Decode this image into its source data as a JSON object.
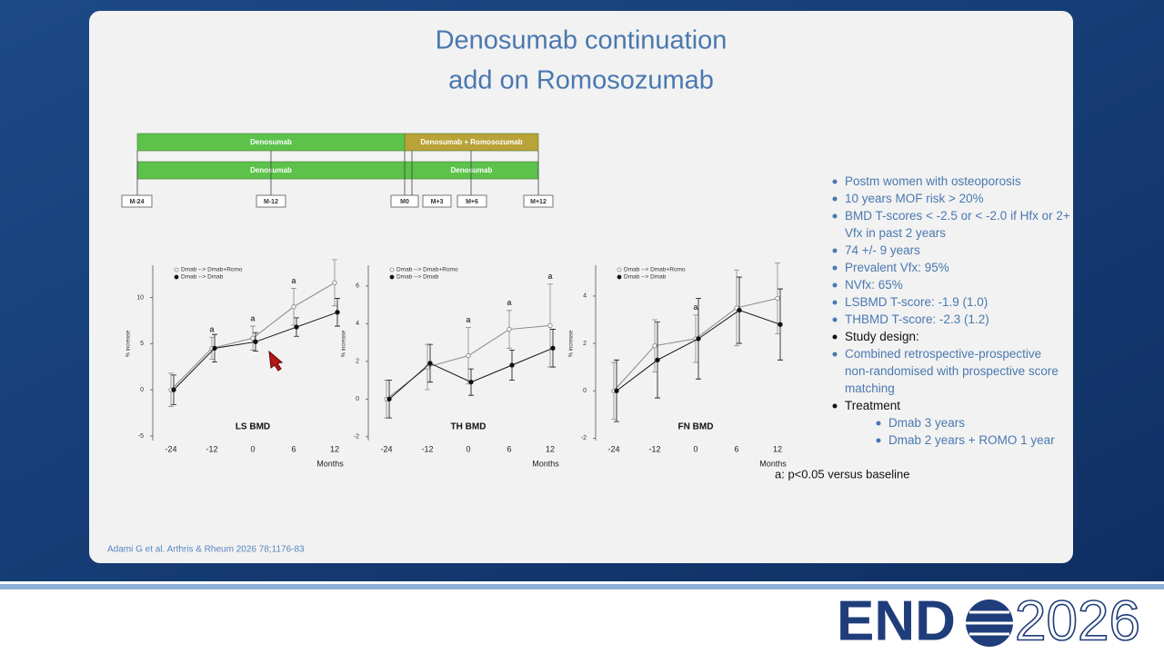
{
  "slide": {
    "title_lines": [
      "Denosumab continuation",
      "add on Romosozumab"
    ],
    "timeline": {
      "row1": [
        "Denosumab",
        "Denosumab + Romosozumab"
      ],
      "row2": [
        "Denosumab",
        "Denosumab"
      ],
      "milestones": [
        "M-24",
        "M-12",
        "M0",
        "M+3",
        "M+6",
        "M+12"
      ]
    },
    "bullets": [
      {
        "text": "Postm women with osteoporosis",
        "level": 1
      },
      {
        "text": "10 years MOF risk > 20%",
        "level": 1
      },
      {
        "text": "BMD T-scores < -2.5 or < -2.0 if Hfx or 2+ Vfx in past 2 years",
        "level": 1
      },
      {
        "text": "74 +/- 9 years",
        "level": 1
      },
      {
        "text": "Prevalent Vfx: 95%",
        "level": 1
      },
      {
        "text": "NVfx: 65%",
        "level": 1
      },
      {
        "text": "LSBMD T-score: -1.9 (1.0)",
        "level": 1
      },
      {
        "text": "THBMD T-score: -2.3 (1.2)",
        "level": 1
      },
      {
        "text": "Study design:",
        "level": 0
      },
      {
        "text": "Combined retrospective-prospective non-randomised with prospective score matching",
        "level": 1
      },
      {
        "text": "Treatment",
        "level": 0
      },
      {
        "text": "Dmab 3 years",
        "level": 2
      },
      {
        "text": "Dmab 2 years + ROMO 1 year",
        "level": 2
      }
    ],
    "footnote": "a: p<0.05 versus baseline",
    "citation": "Adami G et al. Arthris & Rheum 2026 78;1176-83",
    "logo_left": "END",
    "logo_right": "2026"
  },
  "chart_data": [
    {
      "type": "line",
      "title": "LS BMD",
      "y_label": "% increase",
      "x_label": "Months",
      "categories": [
        "-24",
        "-12",
        "0",
        "6",
        "12"
      ],
      "ylim": [
        -5.5,
        13.5
      ],
      "yticks": [
        -5,
        0,
        5,
        10
      ],
      "series": [
        {
          "name": "Dmab --> Dmab+Romo",
          "color": "#888888",
          "fill": "#ffffff",
          "values": [
            0,
            4.5,
            5.6,
            9,
            11.6
          ],
          "errors": [
            1.8,
            1.2,
            1.3,
            2.0,
            2.5
          ],
          "markers": [
            null,
            "a",
            "a",
            "a",
            null
          ]
        },
        {
          "name": "Dmab --> Dmab",
          "color": "#111111",
          "fill": "#111111",
          "values": [
            0,
            4.5,
            5.2,
            6.8,
            8.4
          ],
          "errors": [
            1.6,
            1.5,
            1.0,
            1.0,
            1.5
          ]
        }
      ]
    },
    {
      "type": "line",
      "title": "TH BMD",
      "y_label": "% increase",
      "x_label": "Months",
      "categories": [
        "-24",
        "-12",
        "0",
        "6",
        "12"
      ],
      "ylim": [
        -2.2,
        7.1
      ],
      "yticks": [
        -2,
        0,
        2,
        4,
        6
      ],
      "series": [
        {
          "name": "Dmab --> Dmab+Romo",
          "color": "#888888",
          "fill": "#ffffff",
          "values": [
            0,
            1.7,
            2.3,
            3.7,
            3.9
          ],
          "errors": [
            1.0,
            1.2,
            1.5,
            1.0,
            2.2
          ],
          "markers": [
            null,
            null,
            "a",
            "a",
            "a"
          ]
        },
        {
          "name": "Dmab --> Dmab",
          "color": "#111111",
          "fill": "#111111",
          "values": [
            0,
            1.9,
            0.9,
            1.8,
            2.7
          ],
          "errors": [
            1.0,
            1.0,
            0.7,
            0.8,
            1.0
          ]
        }
      ]
    },
    {
      "type": "line",
      "title": "FN BMD",
      "y_label": "% increase",
      "x_label": "Months",
      "categories": [
        "-24",
        "-12",
        "0",
        "6",
        "12"
      ],
      "ylim": [
        -2.1,
        5.3
      ],
      "yticks": [
        -2,
        0,
        2,
        4
      ],
      "series": [
        {
          "name": "Dmab --> Dmab+Romo",
          "color": "#888888",
          "fill": "#ffffff",
          "values": [
            0,
            1.9,
            2.2,
            3.5,
            3.9
          ],
          "errors": [
            1.2,
            1.1,
            1.0,
            1.6,
            1.5
          ],
          "markers": [
            null,
            null,
            "a",
            null,
            null
          ]
        },
        {
          "name": "Dmab --> Dmab",
          "color": "#111111",
          "fill": "#111111",
          "values": [
            0,
            1.3,
            2.2,
            3.4,
            2.8
          ],
          "errors": [
            1.3,
            1.6,
            1.7,
            1.4,
            1.5
          ]
        }
      ]
    }
  ]
}
